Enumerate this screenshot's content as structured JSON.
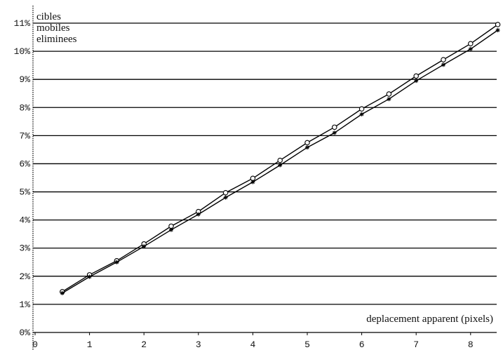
{
  "chart_data": {
    "type": "line",
    "title": "",
    "ylabel_lines": [
      "cibles",
      "mobiles",
      "eliminees"
    ],
    "xlabel": "deplacement apparent (pixels)",
    "xlim": [
      0,
      8.5
    ],
    "ylim": [
      0,
      11
    ],
    "x_ticks": [
      0,
      1,
      2,
      3,
      4,
      5,
      6,
      7,
      8
    ],
    "y_ticks": [
      0,
      1,
      2,
      3,
      4,
      5,
      6,
      7,
      8,
      9,
      10,
      11
    ],
    "y_tick_suffix": "%",
    "grid": "horizontal",
    "x": [
      0.5,
      1,
      1.5,
      2,
      2.5,
      3,
      3.5,
      4,
      4.5,
      5,
      5.5,
      6,
      6.5,
      7,
      7.5,
      8,
      8.5
    ],
    "series": [
      {
        "marker": "circle",
        "values": [
          1.45,
          2.05,
          2.55,
          3.15,
          3.78,
          4.3,
          4.97,
          5.48,
          6.12,
          6.75,
          7.3,
          7.95,
          8.48,
          9.12,
          9.7,
          10.27,
          10.95
        ]
      },
      {
        "marker": "star",
        "values": [
          1.4,
          1.98,
          2.5,
          3.06,
          3.65,
          4.2,
          4.8,
          5.35,
          5.95,
          6.58,
          7.1,
          7.76,
          8.3,
          8.95,
          9.52,
          10.08,
          10.75
        ]
      }
    ]
  }
}
